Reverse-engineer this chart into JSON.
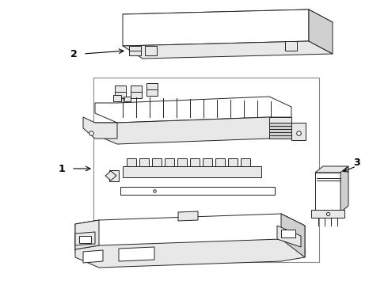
{
  "background_color": "#ffffff",
  "line_color": "#222222",
  "label_color": "#000000",
  "fig_width": 4.9,
  "fig_height": 3.6,
  "dpi": 100,
  "lw": 0.7
}
